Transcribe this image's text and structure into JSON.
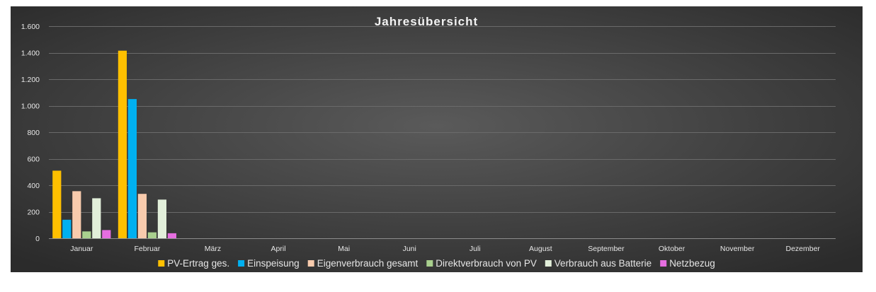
{
  "chart_data": {
    "type": "bar",
    "title": "Jahresübersicht",
    "categories": [
      "Januar",
      "Februar",
      "März",
      "April",
      "Mai",
      "Juni",
      "Juli",
      "August",
      "September",
      "Oktober",
      "November",
      "Dezember"
    ],
    "ylim": [
      0,
      1600
    ],
    "yticks": [
      0,
      200,
      400,
      600,
      800,
      1000,
      1200,
      1400,
      1600
    ],
    "ytick_labels": [
      "0",
      "200",
      "400",
      "600",
      "800",
      "1.000",
      "1.200",
      "1.400",
      "1.600"
    ],
    "grid": true,
    "legend_position": "bottom",
    "series": [
      {
        "name": "PV-Ertrag ges.",
        "color": "#FFC000",
        "values": [
          510,
          1415,
          null,
          null,
          null,
          null,
          null,
          null,
          null,
          null,
          null,
          null
        ]
      },
      {
        "name": "Einspeisung",
        "color": "#00B0F0",
        "values": [
          140,
          1050,
          null,
          null,
          null,
          null,
          null,
          null,
          null,
          null,
          null,
          null
        ]
      },
      {
        "name": "Eigenverbrauch gesamt",
        "color": "#F8CBAD",
        "values": [
          355,
          335,
          null,
          null,
          null,
          null,
          null,
          null,
          null,
          null,
          null,
          null
        ]
      },
      {
        "name": "Direktverbrauch von PV",
        "color": "#A9D08E",
        "values": [
          52,
          45,
          null,
          null,
          null,
          null,
          null,
          null,
          null,
          null,
          null,
          null
        ]
      },
      {
        "name": "Verbrauch aus Batterie",
        "color": "#E2EFDA",
        "values": [
          302,
          292,
          null,
          null,
          null,
          null,
          null,
          null,
          null,
          null,
          null,
          null
        ]
      },
      {
        "name": "Netzbezug",
        "color": "#E66EE0",
        "values": [
          62,
          38,
          null,
          null,
          null,
          null,
          null,
          null,
          null,
          null,
          null,
          null
        ]
      }
    ]
  }
}
